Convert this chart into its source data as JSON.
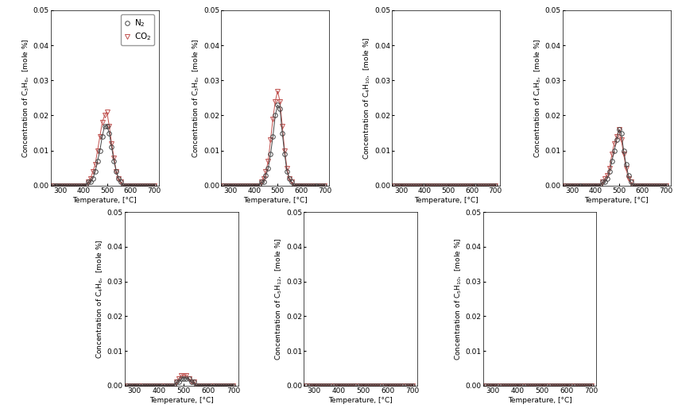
{
  "temperature": [
    270,
    280,
    290,
    300,
    310,
    320,
    330,
    340,
    350,
    360,
    370,
    380,
    390,
    400,
    410,
    420,
    430,
    440,
    450,
    460,
    470,
    480,
    490,
    500,
    510,
    520,
    530,
    540,
    550,
    560,
    570,
    580,
    590,
    600,
    610,
    620,
    630,
    640,
    650,
    660,
    670,
    680,
    690,
    700
  ],
  "subplots": [
    {
      "ylabel": "Concentration of C$_3$H$_6$,  [mole %]",
      "n2": [
        0.0,
        0.0,
        0.0,
        0.0,
        0.0,
        0.0,
        0.0,
        0.0,
        0.0,
        0.0,
        0.0,
        0.0,
        0.0,
        0.0,
        0.0,
        0.001,
        0.001,
        0.002,
        0.004,
        0.007,
        0.01,
        0.014,
        0.017,
        0.017,
        0.015,
        0.011,
        0.007,
        0.004,
        0.002,
        0.001,
        0.0,
        0.0,
        0.0,
        0.0,
        0.0,
        0.0,
        0.0,
        0.0,
        0.0,
        0.0,
        0.0,
        0.0,
        0.0,
        0.0
      ],
      "co2": [
        0.0,
        0.0,
        0.0,
        0.0,
        0.0,
        0.0,
        0.0,
        0.0,
        0.0,
        0.0,
        0.0,
        0.0,
        0.0,
        0.0,
        0.0,
        0.001,
        0.002,
        0.004,
        0.006,
        0.01,
        0.014,
        0.018,
        0.02,
        0.021,
        0.017,
        0.012,
        0.008,
        0.004,
        0.002,
        0.001,
        0.0,
        0.0,
        0.0,
        0.0,
        0.0,
        0.0,
        0.0,
        0.0,
        0.0,
        0.0,
        0.0,
        0.0,
        0.0,
        0.0
      ],
      "show_legend": true
    },
    {
      "ylabel": "Concentration of C$_3$H$_6$,  [mole %]",
      "n2": [
        0.0,
        0.0,
        0.0,
        0.0,
        0.0,
        0.0,
        0.0,
        0.0,
        0.0,
        0.0,
        0.0,
        0.0,
        0.0,
        0.0,
        0.0,
        0.0,
        0.001,
        0.001,
        0.003,
        0.005,
        0.009,
        0.014,
        0.02,
        0.023,
        0.022,
        0.015,
        0.009,
        0.004,
        0.002,
        0.001,
        0.0,
        0.0,
        0.0,
        0.0,
        0.0,
        0.0,
        0.0,
        0.0,
        0.0,
        0.0,
        0.0,
        0.0,
        0.0,
        0.0
      ],
      "co2": [
        0.0,
        0.0,
        0.0,
        0.0,
        0.0,
        0.0,
        0.0,
        0.0,
        0.0,
        0.0,
        0.0,
        0.0,
        0.0,
        0.0,
        0.0,
        0.0,
        0.001,
        0.002,
        0.004,
        0.007,
        0.013,
        0.019,
        0.024,
        0.027,
        0.024,
        0.017,
        0.01,
        0.005,
        0.002,
        0.001,
        0.0,
        0.0,
        0.0,
        0.0,
        0.0,
        0.0,
        0.0,
        0.0,
        0.0,
        0.0,
        0.0,
        0.0,
        0.0,
        0.0
      ],
      "show_legend": false
    },
    {
      "ylabel": "Concentration of C$_4$H$_{10}$,  [mole %]",
      "n2": [
        0.0,
        0.0,
        0.0,
        0.0,
        0.0,
        0.0,
        0.0,
        0.0,
        0.0,
        0.0,
        0.0,
        0.0,
        0.0,
        0.0,
        0.0,
        0.0,
        0.0,
        0.0,
        0.0,
        0.0,
        0.0,
        0.0,
        0.0,
        0.0,
        0.0,
        0.0,
        0.0,
        0.0,
        0.0,
        0.0,
        0.0,
        0.0,
        0.0,
        0.0,
        0.0,
        0.0,
        0.0,
        0.0,
        0.0,
        0.0,
        0.0,
        0.0,
        0.0,
        0.0
      ],
      "co2": [
        0.0,
        0.0,
        0.0,
        0.0,
        0.0,
        0.0,
        0.0,
        0.0,
        0.0,
        0.0,
        0.0,
        0.0,
        0.0,
        0.0,
        0.0,
        0.0,
        0.0,
        0.0,
        0.0,
        0.0,
        0.0,
        0.0,
        0.0,
        0.0,
        0.0,
        0.0,
        0.0,
        0.0,
        0.0,
        0.0,
        0.0,
        0.0,
        0.0,
        0.0,
        0.0,
        0.0,
        0.0,
        0.0,
        0.0,
        0.0,
        0.0,
        0.0,
        0.0,
        0.0
      ],
      "show_legend": false
    },
    {
      "ylabel": "Concentration of C$_4$H$_8$,  [mole %]",
      "n2": [
        0.0,
        0.0,
        0.0,
        0.0,
        0.0,
        0.0,
        0.0,
        0.0,
        0.0,
        0.0,
        0.0,
        0.0,
        0.0,
        0.0,
        0.0,
        0.0,
        0.001,
        0.001,
        0.002,
        0.004,
        0.007,
        0.01,
        0.013,
        0.016,
        0.015,
        0.01,
        0.006,
        0.003,
        0.001,
        0.0,
        0.0,
        0.0,
        0.0,
        0.0,
        0.0,
        0.0,
        0.0,
        0.0,
        0.0,
        0.0,
        0.0,
        0.0,
        0.0,
        0.0
      ],
      "co2": [
        0.0,
        0.0,
        0.0,
        0.0,
        0.0,
        0.0,
        0.0,
        0.0,
        0.0,
        0.0,
        0.0,
        0.0,
        0.0,
        0.0,
        0.0,
        0.0,
        0.001,
        0.002,
        0.003,
        0.005,
        0.009,
        0.012,
        0.014,
        0.016,
        0.013,
        0.009,
        0.005,
        0.002,
        0.001,
        0.0,
        0.0,
        0.0,
        0.0,
        0.0,
        0.0,
        0.0,
        0.0,
        0.0,
        0.0,
        0.0,
        0.0,
        0.0,
        0.0,
        0.0
      ],
      "show_legend": false
    },
    {
      "ylabel": "Concentration of C$_4$H$_6$,  [mole %]",
      "n2": [
        0.0,
        0.0,
        0.0,
        0.0,
        0.0,
        0.0,
        0.0,
        0.0,
        0.0,
        0.0,
        0.0,
        0.0,
        0.0,
        0.0,
        0.0,
        0.0,
        0.0,
        0.0,
        0.0,
        0.0,
        0.001,
        0.001,
        0.002,
        0.002,
        0.002,
        0.002,
        0.001,
        0.001,
        0.0,
        0.0,
        0.0,
        0.0,
        0.0,
        0.0,
        0.0,
        0.0,
        0.0,
        0.0,
        0.0,
        0.0,
        0.0,
        0.0,
        0.0,
        0.0
      ],
      "co2": [
        0.0,
        0.0,
        0.0,
        0.0,
        0.0,
        0.0,
        0.0,
        0.0,
        0.0,
        0.0,
        0.0,
        0.0,
        0.0,
        0.0,
        0.0,
        0.0,
        0.0,
        0.0,
        0.0,
        0.0,
        0.001,
        0.002,
        0.003,
        0.003,
        0.003,
        0.002,
        0.001,
        0.001,
        0.0,
        0.0,
        0.0,
        0.0,
        0.0,
        0.0,
        0.0,
        0.0,
        0.0,
        0.0,
        0.0,
        0.0,
        0.0,
        0.0,
        0.0,
        0.0
      ],
      "show_legend": false
    },
    {
      "ylabel": "Concentration of C$_5$H$_{12}$,  [mole %]",
      "n2": [
        0.0,
        0.0,
        0.0,
        0.0,
        0.0,
        0.0,
        0.0,
        0.0,
        0.0,
        0.0,
        0.0,
        0.0,
        0.0,
        0.0,
        0.0,
        0.0,
        0.0,
        0.0,
        0.0,
        0.0,
        0.0,
        0.0,
        0.0,
        0.0,
        0.0,
        0.0,
        0.0,
        0.0,
        0.0,
        0.0,
        0.0,
        0.0,
        0.0,
        0.0,
        0.0,
        0.0,
        0.0,
        0.0,
        0.0,
        0.0,
        0.0,
        0.0,
        0.0,
        0.0
      ],
      "co2": [
        0.0,
        0.0,
        0.0,
        0.0,
        0.0,
        0.0,
        0.0,
        0.0,
        0.0,
        0.0,
        0.0,
        0.0,
        0.0,
        0.0,
        0.0,
        0.0,
        0.0,
        0.0,
        0.0,
        0.0,
        0.0,
        0.0,
        0.0,
        0.0,
        0.0,
        0.0,
        0.0,
        0.0,
        0.0,
        0.0,
        0.0,
        0.0,
        0.0,
        0.0,
        0.0,
        0.0,
        0.0,
        0.0,
        0.0,
        0.0,
        0.0,
        0.0,
        0.0,
        0.0
      ],
      "show_legend": false
    },
    {
      "ylabel": "Concentration of C$_5$H$_{10}$,  [mole %]",
      "n2": [
        0.0,
        0.0,
        0.0,
        0.0,
        0.0,
        0.0,
        0.0,
        0.0,
        0.0,
        0.0,
        0.0,
        0.0,
        0.0,
        0.0,
        0.0,
        0.0,
        0.0,
        0.0,
        0.0,
        0.0,
        0.0,
        0.0,
        0.0,
        0.0,
        0.0,
        0.0,
        0.0,
        0.0,
        0.0,
        0.0,
        0.0,
        0.0,
        0.0,
        0.0,
        0.0,
        0.0,
        0.0,
        0.0,
        0.0,
        0.0,
        0.0,
        0.0,
        0.0,
        0.0
      ],
      "co2": [
        0.0,
        0.0,
        0.0,
        0.0,
        0.0,
        0.0,
        0.0,
        0.0,
        0.0,
        0.0,
        0.0,
        0.0,
        0.0,
        0.0,
        0.0,
        0.0,
        0.0,
        0.0,
        0.0,
        0.0,
        0.0,
        0.0,
        0.0,
        0.0,
        0.0,
        0.0,
        0.0,
        0.0,
        0.0,
        0.0,
        0.0,
        0.0,
        0.0,
        0.0,
        0.0,
        0.0,
        0.0,
        0.0,
        0.0,
        0.0,
        0.0,
        0.0,
        0.0,
        0.0
      ],
      "show_legend": false
    }
  ],
  "xlabel": "Temperature, [°C]",
  "ylim": [
    0,
    0.05
  ],
  "xlim": [
    260,
    720
  ],
  "xticks": [
    300,
    400,
    500,
    600,
    700
  ],
  "yticks": [
    0.0,
    0.01,
    0.02,
    0.03,
    0.04,
    0.05
  ],
  "n2_color": "#444444",
  "co2_color": "#c0504d",
  "markersize": 4,
  "fontsize_label": 6.5,
  "fontsize_tick": 6.5,
  "fontsize_legend": 7.5
}
